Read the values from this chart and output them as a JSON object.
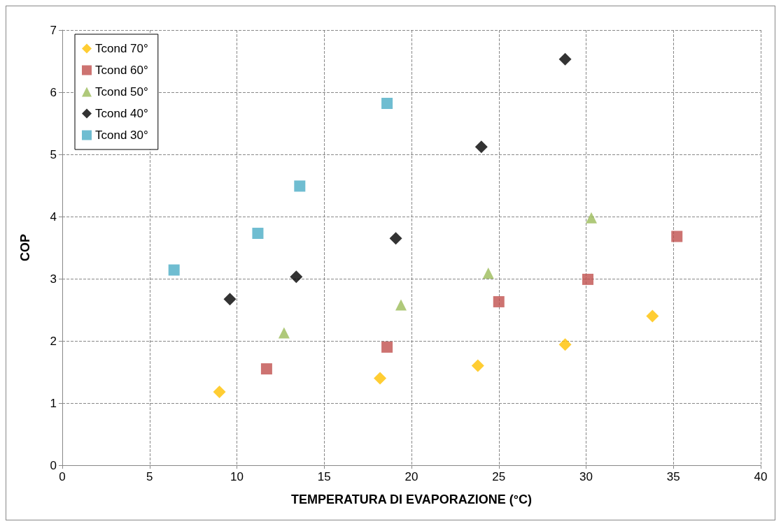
{
  "chart_data": {
    "type": "scatter",
    "xlabel": "TEMPERATURA DI EVAPORAZIONE (°C)",
    "ylabel": "COP",
    "xlim": [
      0,
      40
    ],
    "xticks": [
      0,
      5,
      10,
      15,
      20,
      25,
      30,
      35,
      40
    ],
    "ylim": [
      0,
      7
    ],
    "yticks": [
      0,
      1,
      2,
      3,
      4,
      5,
      6,
      7
    ],
    "grid": true,
    "legend": "top left",
    "series": [
      {
        "name": "Tcond 70°",
        "color": "#ffc000",
        "marker": "diamond",
        "x": [
          9.0,
          18.2,
          23.8,
          28.8,
          33.8
        ],
        "values": [
          1.18,
          1.4,
          1.6,
          1.94,
          2.4
        ]
      },
      {
        "name": "Tcond 60°",
        "color": "#c0504d",
        "marker": "square",
        "x": [
          11.7,
          18.6,
          25.0,
          30.1,
          35.2
        ],
        "values": [
          1.55,
          1.9,
          2.63,
          2.99,
          3.68
        ]
      },
      {
        "name": "Tcond 50°",
        "color": "#9bbb59",
        "marker": "triangle",
        "x": [
          12.7,
          19.4,
          24.4,
          30.3
        ],
        "values": [
          2.13,
          2.58,
          3.09,
          3.98
        ]
      },
      {
        "name": "Tcond 40°",
        "color": "#000000",
        "marker": "diamond",
        "x": [
          9.6,
          13.4,
          19.1,
          24.0,
          28.8
        ],
        "values": [
          2.67,
          3.03,
          3.65,
          5.12,
          6.53
        ]
      },
      {
        "name": "Tcond 30°",
        "color": "#4bacc6",
        "marker": "square",
        "x": [
          6.4,
          11.2,
          13.6,
          18.6
        ],
        "values": [
          3.14,
          3.73,
          4.49,
          5.82
        ]
      }
    ]
  }
}
